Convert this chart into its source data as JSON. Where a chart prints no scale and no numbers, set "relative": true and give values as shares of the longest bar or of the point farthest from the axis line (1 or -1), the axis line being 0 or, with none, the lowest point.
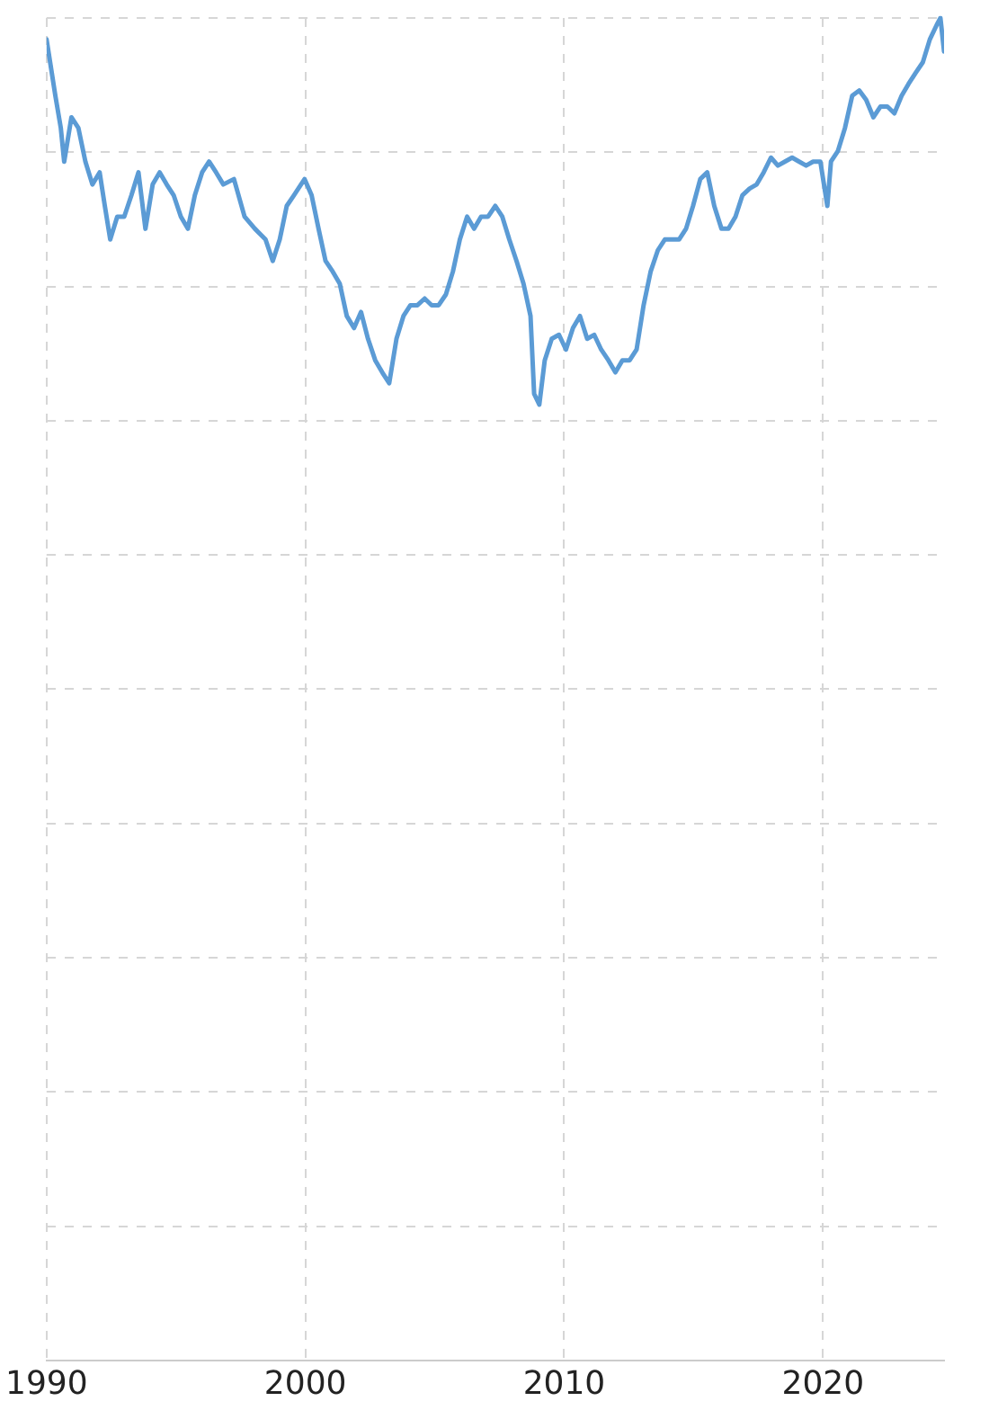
{
  "chart_data": {
    "type": "line",
    "relative": true,
    "grid": true,
    "line_style": "solid",
    "marker": "none",
    "legend": false,
    "xlim": [
      1990,
      2024.68
    ],
    "xticks": [
      1990,
      2000,
      2010,
      2020
    ],
    "x": [
      1990.0,
      1990.34,
      1990.55,
      1990.68,
      1990.96,
      1991.23,
      1991.5,
      1991.77,
      1992.05,
      1992.25,
      1992.46,
      1992.73,
      1993.0,
      1993.28,
      1993.55,
      1993.82,
      1994.1,
      1994.37,
      1994.64,
      1994.91,
      1995.19,
      1995.46,
      1995.73,
      1996.01,
      1996.28,
      1996.55,
      1996.83,
      1997.24,
      1997.65,
      1998.05,
      1998.46,
      1998.74,
      1999.01,
      1999.28,
      1999.56,
      1999.97,
      2000.24,
      2000.51,
      2000.78,
      2001.06,
      2001.33,
      2001.6,
      2001.88,
      2002.15,
      2002.42,
      2002.7,
      2002.97,
      2003.24,
      2003.52,
      2003.79,
      2004.06,
      2004.33,
      2004.61,
      2004.88,
      2005.15,
      2005.43,
      2005.7,
      2005.97,
      2006.25,
      2006.52,
      2006.79,
      2007.06,
      2007.34,
      2007.61,
      2007.88,
      2008.16,
      2008.43,
      2008.7,
      2008.84,
      2009.04,
      2009.25,
      2009.52,
      2009.8,
      2010.07,
      2010.34,
      2010.61,
      2010.89,
      2011.16,
      2011.43,
      2011.71,
      2011.98,
      2012.25,
      2012.53,
      2012.8,
      2013.07,
      2013.34,
      2013.62,
      2013.89,
      2014.16,
      2014.44,
      2014.71,
      2014.98,
      2015.26,
      2015.53,
      2015.8,
      2016.08,
      2016.35,
      2016.62,
      2016.89,
      2017.17,
      2017.44,
      2017.71,
      2017.99,
      2018.26,
      2018.53,
      2018.81,
      2019.08,
      2019.35,
      2019.62,
      2019.9,
      2020.17,
      2020.31,
      2020.58,
      2020.85,
      2021.13,
      2021.4,
      2021.67,
      2021.95,
      2022.22,
      2022.49,
      2022.76,
      2023.04,
      2023.31,
      2023.58,
      2023.86,
      2024.13,
      2024.4,
      2024.54,
      2024.68
    ],
    "series": [
      {
        "color": "#5b9bd5",
        "values": [
          0.984,
          0.942,
          0.918,
          0.893,
          0.926,
          0.918,
          0.893,
          0.876,
          0.885,
          0.86,
          0.835,
          0.852,
          0.852,
          0.868,
          0.885,
          0.843,
          0.876,
          0.885,
          0.876,
          0.868,
          0.852,
          0.843,
          0.868,
          0.885,
          0.893,
          0.885,
          0.876,
          0.88,
          0.852,
          0.843,
          0.835,
          0.819,
          0.835,
          0.86,
          0.868,
          0.88,
          0.868,
          0.843,
          0.819,
          0.811,
          0.802,
          0.778,
          0.769,
          0.781,
          0.761,
          0.745,
          0.736,
          0.728,
          0.761,
          0.778,
          0.786,
          0.786,
          0.791,
          0.786,
          0.786,
          0.794,
          0.811,
          0.835,
          0.852,
          0.843,
          0.852,
          0.852,
          0.86,
          0.852,
          0.835,
          0.819,
          0.802,
          0.778,
          0.72,
          0.712,
          0.745,
          0.761,
          0.764,
          0.753,
          0.769,
          0.778,
          0.761,
          0.764,
          0.753,
          0.745,
          0.736,
          0.745,
          0.745,
          0.753,
          0.786,
          0.811,
          0.827,
          0.835,
          0.835,
          0.835,
          0.843,
          0.86,
          0.88,
          0.885,
          0.86,
          0.843,
          0.843,
          0.852,
          0.868,
          0.873,
          0.876,
          0.885,
          0.896,
          0.89,
          0.893,
          0.896,
          0.893,
          0.89,
          0.893,
          0.893,
          0.86,
          0.893,
          0.901,
          0.918,
          0.942,
          0.946,
          0.939,
          0.926,
          0.934,
          0.934,
          0.929,
          0.942,
          0.951,
          0.959,
          0.967,
          0.984,
          0.995,
          1,
          0.975
        ]
      }
    ]
  }
}
